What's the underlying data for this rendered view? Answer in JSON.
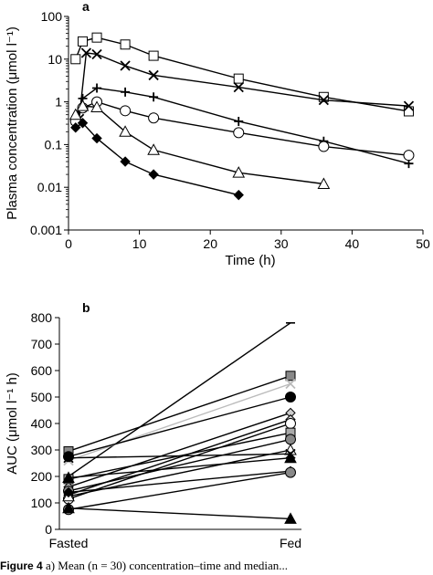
{
  "chart_data": [
    {
      "panel": "a",
      "type": "line",
      "xlabel": "Time (h)",
      "ylabel": "Plasma concentration (μmol l⁻¹)",
      "xlim": [
        0,
        50
      ],
      "ylim": [
        0.001,
        100
      ],
      "yscale": "log",
      "x_ticks": [
        "0",
        "10",
        "20",
        "30",
        "40",
        "50"
      ],
      "y_ticks": [
        "0.001",
        "0.01",
        "0.1",
        "1",
        "10",
        "100"
      ],
      "series": [
        {
          "marker": "square",
          "x": [
            1,
            2,
            4,
            8,
            12,
            24,
            36,
            48
          ],
          "y": [
            10,
            26,
            32,
            22,
            12,
            3.5,
            1.3,
            0.6
          ]
        },
        {
          "marker": "x",
          "x": [
            1.5,
            2.5,
            4,
            8,
            12,
            24,
            36,
            48
          ],
          "y": [
            0.4,
            14,
            13,
            7,
            4.2,
            2.2,
            1.1,
            0.8
          ]
        },
        {
          "marker": "plus",
          "x": [
            1,
            2,
            4,
            8,
            12,
            24,
            36,
            48
          ],
          "y": [
            0.3,
            1.2,
            2.1,
            1.7,
            1.3,
            0.35,
            0.12,
            0.036
          ]
        },
        {
          "marker": "circle",
          "x": [
            1,
            2,
            4,
            8,
            12,
            24,
            36,
            48
          ],
          "y": [
            0.35,
            0.72,
            1.0,
            0.62,
            0.42,
            0.19,
            0.09,
            0.056
          ]
        },
        {
          "marker": "triangle",
          "x": [
            1,
            2,
            4,
            8,
            12,
            24,
            36
          ],
          "y": [
            0.5,
            0.8,
            0.75,
            0.2,
            0.075,
            0.022,
            0.012
          ]
        },
        {
          "marker": "diamond",
          "x": [
            1,
            2,
            4,
            8,
            12,
            24
          ],
          "y": [
            0.25,
            0.32,
            0.14,
            0.04,
            0.02,
            0.0066
          ]
        }
      ]
    },
    {
      "panel": "b",
      "type": "line",
      "xlabel": "",
      "ylabel": "AUC (μmol l⁻¹ h)",
      "categories": [
        "Fasted",
        "Fed"
      ],
      "ylim": [
        0,
        800
      ],
      "y_ticks": [
        "0",
        "100",
        "200",
        "300",
        "400",
        "500",
        "600",
        "700",
        "800"
      ],
      "series": [
        {
          "marker": "none",
          "color": "#000000",
          "values": [
            200,
            780
          ]
        },
        {
          "marker": "square",
          "color": "#888888",
          "values": [
            295,
            580
          ]
        },
        {
          "marker": "x",
          "color": "#bbbbbb",
          "values": [
            260,
            550
          ]
        },
        {
          "marker": "circle",
          "color": "#000000",
          "values": [
            275,
            500
          ]
        },
        {
          "marker": "diamond",
          "color": "#cccccc",
          "values": [
            160,
            440
          ]
        },
        {
          "marker": "diamond",
          "color": "#cccccc",
          "values": [
            130,
            415
          ]
        },
        {
          "marker": "circle",
          "color": "#ffffff",
          "values": [
            115,
            400
          ]
        },
        {
          "marker": "square",
          "color": "#aaaaaa",
          "values": [
            190,
            365
          ]
        },
        {
          "marker": "circle",
          "color": "#888888",
          "values": [
            145,
            340
          ]
        },
        {
          "marker": "triangle",
          "color": "#ffffff",
          "values": [
            125,
            300
          ]
        },
        {
          "marker": "x",
          "color": "#000000",
          "values": [
            270,
            285
          ]
        },
        {
          "marker": "triangle",
          "color": "#000000",
          "values": [
            195,
            270
          ]
        },
        {
          "marker": "diamond",
          "color": "#000000",
          "values": [
            140,
            220
          ]
        },
        {
          "marker": "circle",
          "color": "#888888",
          "values": [
            75,
            215
          ]
        },
        {
          "marker": "triangle",
          "color": "#000000",
          "values": [
            80,
            40
          ]
        }
      ]
    }
  ],
  "panels": {
    "a": "a",
    "b": "b"
  },
  "caption": {
    "fig": "Figure 4",
    "text": " a) Mean (n = 30) concentration–time and median..."
  }
}
